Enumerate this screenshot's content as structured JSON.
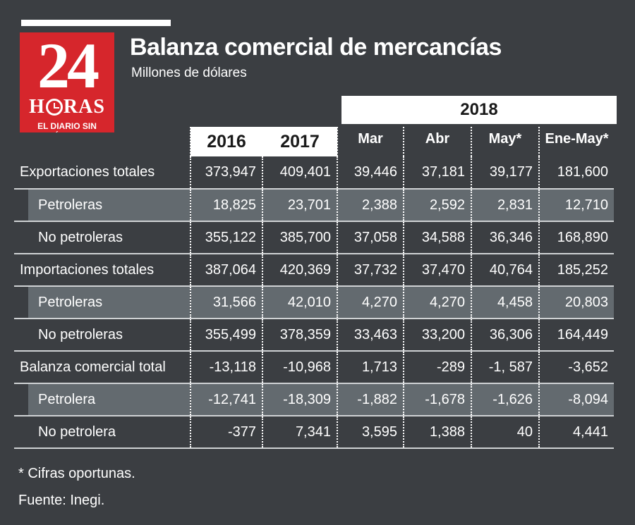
{
  "logo": {
    "number": "24",
    "word_left": "H",
    "word_right": "RAS",
    "tagline": "EL DIARIO SIN LÍMITES"
  },
  "title": "Balanza comercial de mercancías",
  "subtitle": "Millones de dólares",
  "year_group": "2018",
  "colors": {
    "background": "#3b3e42",
    "shaded_row": "#636a6f",
    "logo_red": "#d6262c",
    "header_white": "#ffffff"
  },
  "chart_data": {
    "type": "table",
    "title": "Balanza comercial de mercancías",
    "subtitle": "Millones de dólares",
    "column_group": "2018",
    "columns": [
      "2016",
      "2017",
      "Mar",
      "Abr",
      "May*",
      "Ene-May*"
    ],
    "rows": [
      {
        "label": "Exportaciones totales",
        "level": 0,
        "shaded": false,
        "values": [
          "373,947",
          "409,401",
          "39,446",
          "37,181",
          "39,177",
          "181,600"
        ]
      },
      {
        "label": "Petroleras",
        "level": 1,
        "shaded": true,
        "values": [
          "18,825",
          "23,701",
          "2,388",
          "2,592",
          "2,831",
          "12,710"
        ]
      },
      {
        "label": "No petroleras",
        "level": 1,
        "shaded": false,
        "values": [
          "355,122",
          "385,700",
          "37,058",
          "34,588",
          "36,346",
          "168,890"
        ]
      },
      {
        "label": "Importaciones totales",
        "level": 0,
        "shaded": false,
        "values": [
          "387,064",
          "420,369",
          "37,732",
          "37,470",
          "40,764",
          "185,252"
        ]
      },
      {
        "label": "Petroleras",
        "level": 1,
        "shaded": true,
        "values": [
          "31,566",
          "42,010",
          "4,270",
          "4,270",
          "4,458",
          "20,803"
        ]
      },
      {
        "label": "No petroleras",
        "level": 1,
        "shaded": false,
        "values": [
          "355,499",
          "378,359",
          "33,463",
          "33,200",
          "36,306",
          "164,449"
        ]
      },
      {
        "label": "Balanza comercial total",
        "level": 0,
        "shaded": false,
        "values": [
          "-13,118",
          "-10,968",
          "1,713",
          "-289",
          "-1, 587",
          "-3,652"
        ]
      },
      {
        "label": "Petrolera",
        "level": 1,
        "shaded": true,
        "values": [
          "-12,741",
          "-18,309",
          "-1,882",
          "-1,678",
          "-1,626",
          "-8,094"
        ]
      },
      {
        "label": "No petrolera",
        "level": 1,
        "shaded": false,
        "values": [
          "-377",
          "7,341",
          "3,595",
          "1,388",
          "40",
          "4,441"
        ]
      }
    ]
  },
  "footnote": "* Cifras oportunas.",
  "source": "Fuente: Inegi."
}
